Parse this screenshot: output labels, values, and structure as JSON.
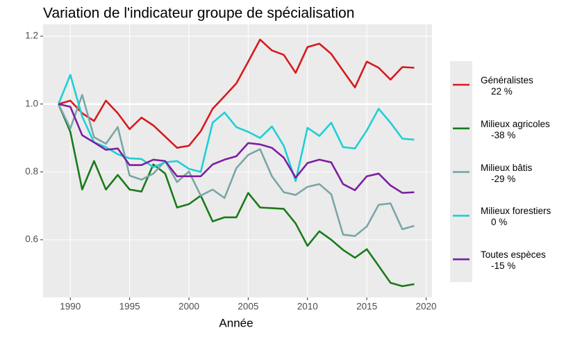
{
  "chart_data": {
    "type": "line",
    "title": "Variation de l'indicateur groupe de spécialisation",
    "xlabel": "Année",
    "x": [
      1989,
      1990,
      1991,
      1992,
      1993,
      1994,
      1995,
      1996,
      1997,
      1998,
      1999,
      2000,
      2001,
      2002,
      2003,
      2004,
      2005,
      2006,
      2007,
      2008,
      2009,
      2010,
      2011,
      2012,
      2013,
      2014,
      2015,
      2016,
      2017,
      2018,
      2019
    ],
    "xlim": [
      1987.7,
      2020.5
    ],
    "xticks": [
      1990,
      1995,
      2000,
      2005,
      2010,
      2015,
      2020
    ],
    "ylim": [
      0.43,
      1.235
    ],
    "yticks": [
      0.6,
      0.8,
      {
        "value": 1,
        "label": "1.0"
      },
      1.2
    ],
    "hline": 1,
    "grid": true,
    "legend": "right",
    "series": [
      {
        "name": "Généralistes\n    22 %",
        "color": "#d7191c",
        "values": [
          1.0,
          1.01,
          0.973,
          0.95,
          1.01,
          0.973,
          0.926,
          0.96,
          0.937,
          0.904,
          0.871,
          0.877,
          0.92,
          0.986,
          1.023,
          1.061,
          1.125,
          1.19,
          1.158,
          1.145,
          1.092,
          1.168,
          1.178,
          1.148,
          1.098,
          1.049,
          1.125,
          1.107,
          1.072,
          1.109,
          1.107
        ]
      },
      {
        "name": "Milieux agricoles\n    -38 %",
        "color": "#1a7a1a",
        "values": [
          1.0,
          0.918,
          0.748,
          0.832,
          0.748,
          0.791,
          0.748,
          0.742,
          0.822,
          0.795,
          0.695,
          0.705,
          0.73,
          0.654,
          0.666,
          0.666,
          0.738,
          0.695,
          0.693,
          0.691,
          0.648,
          0.582,
          0.625,
          0.6,
          0.57,
          0.547,
          0.572,
          0.523,
          0.473,
          0.463,
          0.469
        ]
      },
      {
        "name": "Milieux bâtis\n    -29 %",
        "color": "#7aa6a6",
        "values": [
          1.0,
          0.928,
          1.027,
          0.902,
          0.883,
          0.932,
          0.789,
          0.777,
          0.795,
          0.832,
          0.77,
          0.801,
          0.73,
          0.748,
          0.723,
          0.811,
          0.85,
          0.867,
          0.787,
          0.74,
          0.732,
          0.756,
          0.764,
          0.734,
          0.615,
          0.611,
          0.639,
          0.703,
          0.707,
          0.631,
          0.641
        ]
      },
      {
        "name": "Milieux forestiers\n    0 %",
        "color": "#1ecfd6",
        "values": [
          1.0,
          1.086,
          0.963,
          0.887,
          0.873,
          0.852,
          0.84,
          0.838,
          0.814,
          0.828,
          0.832,
          0.809,
          0.8,
          0.945,
          0.975,
          0.932,
          0.918,
          0.9,
          0.934,
          0.877,
          0.773,
          0.93,
          0.906,
          0.945,
          0.873,
          0.869,
          0.922,
          0.986,
          0.945,
          0.898,
          0.895
        ]
      },
      {
        "name": "Toutes espèces\n    -15 %",
        "color": "#7b1fa2",
        "values": [
          1.0,
          0.992,
          0.908,
          0.887,
          0.865,
          0.869,
          0.82,
          0.82,
          0.836,
          0.832,
          0.787,
          0.787,
          0.787,
          0.822,
          0.836,
          0.846,
          0.885,
          0.881,
          0.871,
          0.842,
          0.783,
          0.826,
          0.836,
          0.828,
          0.764,
          0.746,
          0.787,
          0.795,
          0.76,
          0.738,
          0.74
        ]
      }
    ]
  }
}
